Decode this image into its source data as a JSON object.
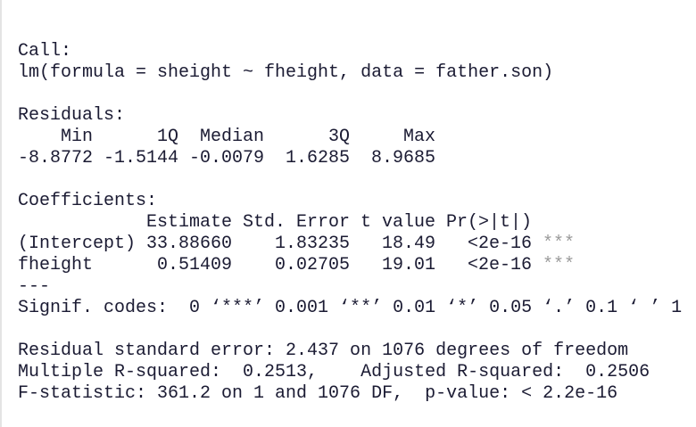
{
  "call": {
    "label": "Call:",
    "formula": "lm(formula = sheight ~ fheight, data = father.son)"
  },
  "residuals": {
    "label": "Residuals:",
    "headers": [
      "Min",
      "1Q",
      "Median",
      "3Q",
      "Max"
    ],
    "values": [
      "-8.8772",
      "-1.5144",
      "-0.0079",
      "1.6285",
      "8.9685"
    ]
  },
  "coefficients": {
    "label": "Coefficients:",
    "headers": [
      "Estimate",
      "Std. Error",
      "t value",
      "Pr(>|t|)"
    ],
    "rows": [
      [
        "(Intercept)",
        "33.88660",
        "1.83235",
        "18.49",
        "<2e-16",
        "***"
      ],
      [
        "fheight",
        "0.51409",
        "0.02705",
        "19.01",
        "<2e-16",
        "***"
      ]
    ],
    "separator": "---",
    "signif": "Signif. codes:  0 ‘***’ 0.001 ‘**’ 0.01 ‘*’ 0.05 ‘.’ 0.1 ‘ ’ 1"
  },
  "summary": [
    "Residual standard error: 2.437 on 1076 degrees of freedom",
    "Multiple R-squared:  0.2513,    Adjusted R-squared:  0.2506",
    "F-statistic: 361.2 on 1 and 1076 DF,  p-value: < 2.2e-16"
  ]
}
